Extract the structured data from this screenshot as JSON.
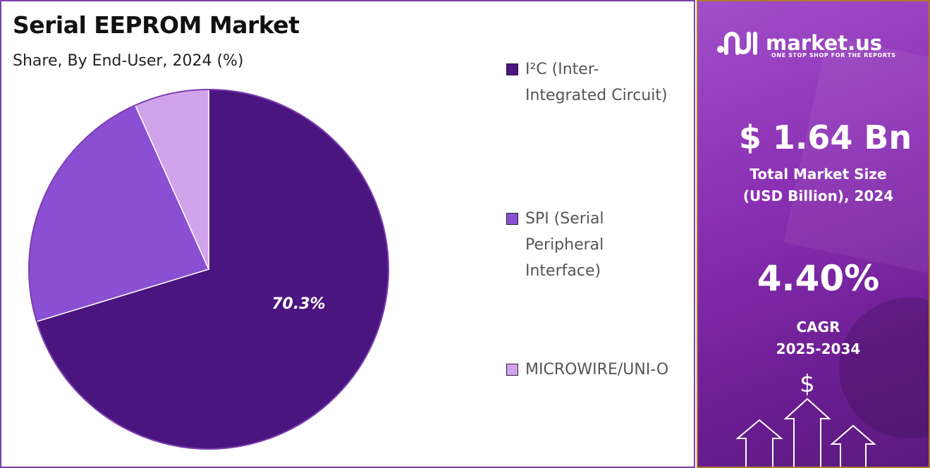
{
  "chart_data": {
    "type": "pie",
    "title": "Serial EEPROM Market",
    "subtitle": "Share, By End-User, 2024 (%)",
    "slices": [
      {
        "name": "I²C (Inter-Integrated Circuit)",
        "value": 70.3,
        "color": "#4b1580",
        "label": "70.3%"
      },
      {
        "name": "SPI (Serial Peripheral Interface)",
        "value": 23.0,
        "color": "#8a4fd2",
        "label": ""
      },
      {
        "name": "MICROWIRE/UNI-O",
        "value": 6.7,
        "color": "#d1a3ed",
        "label": ""
      }
    ],
    "legend": {
      "placement": "right",
      "entries": [
        {
          "lines": [
            "I²C (Inter-",
            "Integrated Circuit)"
          ],
          "color": "#4b1580"
        },
        {
          "lines": [
            "SPI (Serial",
            "Peripheral",
            "Interface)"
          ],
          "color": "#8a4fd2"
        },
        {
          "lines": [
            "MICROWIRE/UNI-O"
          ],
          "color": "#d1a3ed"
        }
      ]
    }
  },
  "brand": {
    "name": "market.us",
    "tagline": "ONE STOP SHOP FOR THE REPORTS"
  },
  "stats": {
    "market_size": "$ 1.64 Bn",
    "market_size_label": [
      "Total Market Size",
      "(USD Billion), 2024"
    ],
    "cagr": "4.40%",
    "cagr_label": [
      "CAGR",
      "2025-2034"
    ]
  },
  "colors": {
    "accent_purple": "#7b3fb0",
    "panel_gold": "#b07a2a"
  }
}
